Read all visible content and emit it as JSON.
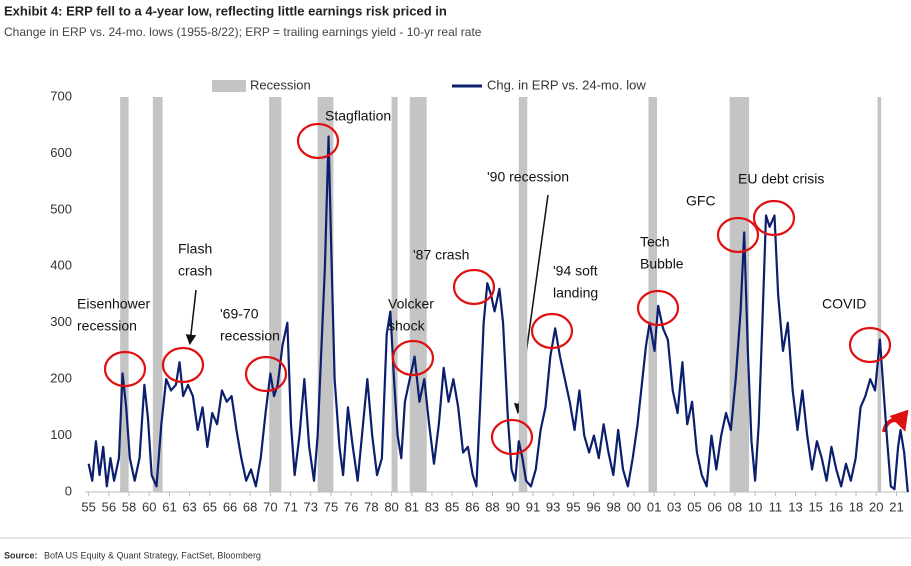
{
  "chart_data": {
    "type": "line",
    "title": "Exhibit 4: ERP fell to a 4-year low, reflecting little earnings risk priced in",
    "subtitle": "Change in ERP vs. 24-mo. lows (1955-8/22); ERP = trailing earnings yield - 10-yr real rate",
    "source_label": "Source:",
    "source": "BofA US Equity & Quant Strategy, FactSet, Bloomberg",
    "x": [
      1955.0,
      1955.3,
      1955.6,
      1955.9,
      1956.2,
      1956.5,
      1956.8,
      1957.1,
      1957.5,
      1957.8,
      1958.1,
      1958.4,
      1958.8,
      1959.2,
      1959.6,
      1959.9,
      1960.2,
      1960.6,
      1961.0,
      1961.4,
      1961.8,
      1962.2,
      1962.5,
      1962.8,
      1963.2,
      1963.6,
      1964.0,
      1964.4,
      1964.8,
      1965.2,
      1965.6,
      1966.0,
      1966.4,
      1966.8,
      1967.2,
      1967.6,
      1968.0,
      1968.4,
      1968.8,
      1969.2,
      1969.6,
      1970.0,
      1970.3,
      1970.6,
      1971.0,
      1971.4,
      1971.7,
      1972.0,
      1972.4,
      1972.8,
      1973.2,
      1973.6,
      1973.9,
      1974.2,
      1974.5,
      1974.8,
      1975.0,
      1975.3,
      1975.7,
      1976.0,
      1976.4,
      1976.8,
      1977.2,
      1977.6,
      1978.0,
      1978.4,
      1978.8,
      1979.2,
      1979.6,
      1979.9,
      1980.2,
      1980.5,
      1980.8,
      1981.1,
      1981.5,
      1981.9,
      1982.3,
      1982.7,
      1983.1,
      1983.5,
      1983.9,
      1984.3,
      1984.7,
      1985.1,
      1985.5,
      1985.9,
      1986.3,
      1986.7,
      1987.0,
      1987.3,
      1987.6,
      1987.9,
      1988.2,
      1988.5,
      1988.9,
      1989.2,
      1989.6,
      1989.9,
      1990.2,
      1990.5,
      1990.8,
      1991.1,
      1991.5,
      1991.9,
      1992.3,
      1992.7,
      1993.1,
      1993.5,
      1993.9,
      1994.3,
      1994.7,
      1995.1,
      1995.5,
      1995.9,
      1996.3,
      1996.7,
      1997.1,
      1997.5,
      1997.9,
      1998.3,
      1998.7,
      1999.1,
      1999.5,
      1999.9,
      2000.3,
      2000.7,
      2001.0,
      2001.3,
      2001.7,
      2002.0,
      2002.4,
      2002.8,
      2003.2,
      2003.6,
      2004.0,
      2004.4,
      2004.8,
      2005.2,
      2005.6,
      2006.0,
      2006.4,
      2006.8,
      2007.2,
      2007.6,
      2008.0,
      2008.4,
      2008.8,
      2009.1,
      2009.4,
      2009.7,
      2010.0,
      2010.3,
      2010.6,
      2010.9,
      2011.2,
      2011.6,
      2011.9,
      2012.3,
      2012.7,
      2013.1,
      2013.5,
      2013.9,
      2014.3,
      2014.7,
      2015.1,
      2015.5,
      2015.9,
      2016.3,
      2016.7,
      2017.1,
      2017.5,
      2017.9,
      2018.3,
      2018.7,
      2019.1,
      2019.5,
      2019.9,
      2020.3,
      2020.6,
      2020.9,
      2021.2,
      2021.5,
      2021.8,
      2022.0,
      2022.3,
      2022.6
    ],
    "series": [
      {
        "name": "Chg. in ERP vs. 24-mo. low",
        "color": "#0c1f6e",
        "values": [
          50,
          20,
          90,
          30,
          80,
          10,
          60,
          20,
          60,
          210,
          150,
          60,
          20,
          60,
          190,
          130,
          30,
          10,
          120,
          200,
          180,
          190,
          230,
          170,
          190,
          170,
          110,
          150,
          80,
          140,
          120,
          180,
          160,
          170,
          110,
          60,
          20,
          40,
          10,
          60,
          140,
          210,
          170,
          190,
          260,
          300,
          120,
          30,
          100,
          200,
          80,
          20,
          100,
          250,
          400,
          630,
          450,
          200,
          80,
          30,
          150,
          80,
          20,
          110,
          200,
          100,
          30,
          60,
          280,
          320,
          200,
          100,
          60,
          160,
          200,
          240,
          160,
          200,
          120,
          50,
          120,
          220,
          160,
          200,
          150,
          70,
          80,
          30,
          10,
          150,
          300,
          370,
          350,
          320,
          360,
          300,
          130,
          40,
          20,
          90,
          60,
          20,
          10,
          40,
          110,
          150,
          240,
          290,
          240,
          200,
          160,
          110,
          180,
          100,
          70,
          100,
          60,
          120,
          70,
          30,
          110,
          40,
          10,
          60,
          120,
          200,
          260,
          300,
          250,
          330,
          290,
          270,
          180,
          140,
          230,
          120,
          160,
          70,
          30,
          10,
          100,
          40,
          100,
          140,
          110,
          200,
          320,
          460,
          250,
          90,
          20,
          120,
          300,
          490,
          470,
          490,
          350,
          250,
          300,
          180,
          110,
          180,
          100,
          40,
          90,
          60,
          20,
          80,
          40,
          10,
          50,
          20,
          60,
          150,
          170,
          200,
          180,
          270,
          180,
          90,
          10,
          5,
          80,
          110,
          70,
          0
        ]
      }
    ],
    "recession_name": "Recession",
    "recession_color": "#c4c4c4",
    "recessions": [
      [
        1957.6,
        1958.3
      ],
      [
        1960.3,
        1961.1
      ],
      [
        1969.9,
        1970.9
      ],
      [
        1973.9,
        1975.2
      ],
      [
        1980.0,
        1980.5
      ],
      [
        1981.5,
        1982.9
      ],
      [
        1990.5,
        1991.2
      ],
      [
        2001.2,
        2001.9
      ],
      [
        2007.9,
        2009.5
      ],
      [
        2020.1,
        2020.4
      ]
    ],
    "xlim": [
      1954.7,
      2022.7
    ],
    "ylim": [
      0,
      700
    ],
    "yticks": [
      0,
      100,
      200,
      300,
      400,
      500,
      600,
      700
    ],
    "xticks": [
      {
        "value": 1955,
        "label": "55"
      },
      {
        "value": 1956.67,
        "label": "56"
      },
      {
        "value": 1958.33,
        "label": "58"
      },
      {
        "value": 1960,
        "label": "60"
      },
      {
        "value": 1961.67,
        "label": "61"
      },
      {
        "value": 1963.33,
        "label": "63"
      },
      {
        "value": 1965,
        "label": "65"
      },
      {
        "value": 1966.67,
        "label": "66"
      },
      {
        "value": 1968.33,
        "label": "68"
      },
      {
        "value": 1970,
        "label": "70"
      },
      {
        "value": 1971.67,
        "label": "71"
      },
      {
        "value": 1973.33,
        "label": "73"
      },
      {
        "value": 1975,
        "label": "75"
      },
      {
        "value": 1976.67,
        "label": "76"
      },
      {
        "value": 1978.33,
        "label": "78"
      },
      {
        "value": 1980,
        "label": "80"
      },
      {
        "value": 1981.67,
        "label": "81"
      },
      {
        "value": 1983.33,
        "label": "83"
      },
      {
        "value": 1985,
        "label": "85"
      },
      {
        "value": 1986.67,
        "label": "86"
      },
      {
        "value": 1988.33,
        "label": "88"
      },
      {
        "value": 1990,
        "label": "90"
      },
      {
        "value": 1991.67,
        "label": "91"
      },
      {
        "value": 1993.33,
        "label": "93"
      },
      {
        "value": 1995,
        "label": "95"
      },
      {
        "value": 1996.67,
        "label": "96"
      },
      {
        "value": 1998.33,
        "label": "98"
      },
      {
        "value": 2000,
        "label": "00"
      },
      {
        "value": 2001.67,
        "label": "01"
      },
      {
        "value": 2003.33,
        "label": "03"
      },
      {
        "value": 2005,
        "label": "05"
      },
      {
        "value": 2006.67,
        "label": "06"
      },
      {
        "value": 2008.33,
        "label": "08"
      },
      {
        "value": 2010,
        "label": "10"
      },
      {
        "value": 2011.67,
        "label": "11"
      },
      {
        "value": 2013.33,
        "label": "13"
      },
      {
        "value": 2015,
        "label": "15"
      },
      {
        "value": 2016.67,
        "label": "16"
      },
      {
        "value": 2018.33,
        "label": "18"
      },
      {
        "value": 2020,
        "label": "20"
      },
      {
        "value": 2021.67,
        "label": "21"
      }
    ],
    "grid": false,
    "annotations": [
      {
        "lines": [
          "Eisenhower",
          "recession"
        ]
      },
      {
        "lines": [
          "Flash",
          "crash"
        ]
      },
      {
        "lines": [
          "'69-70",
          "recession"
        ]
      },
      {
        "lines": [
          "Stagflation"
        ]
      },
      {
        "lines": [
          "Volcker",
          "shock"
        ]
      },
      {
        "lines": [
          "'87 crash"
        ]
      },
      {
        "lines": [
          "'90 recession"
        ]
      },
      {
        "lines": [
          "'94 soft",
          "landing"
        ]
      },
      {
        "lines": [
          "Tech",
          "Bubble"
        ]
      },
      {
        "lines": [
          "GFC"
        ]
      },
      {
        "lines": [
          "EU debt crisis"
        ]
      },
      {
        "lines": [
          "COVID"
        ]
      }
    ]
  }
}
